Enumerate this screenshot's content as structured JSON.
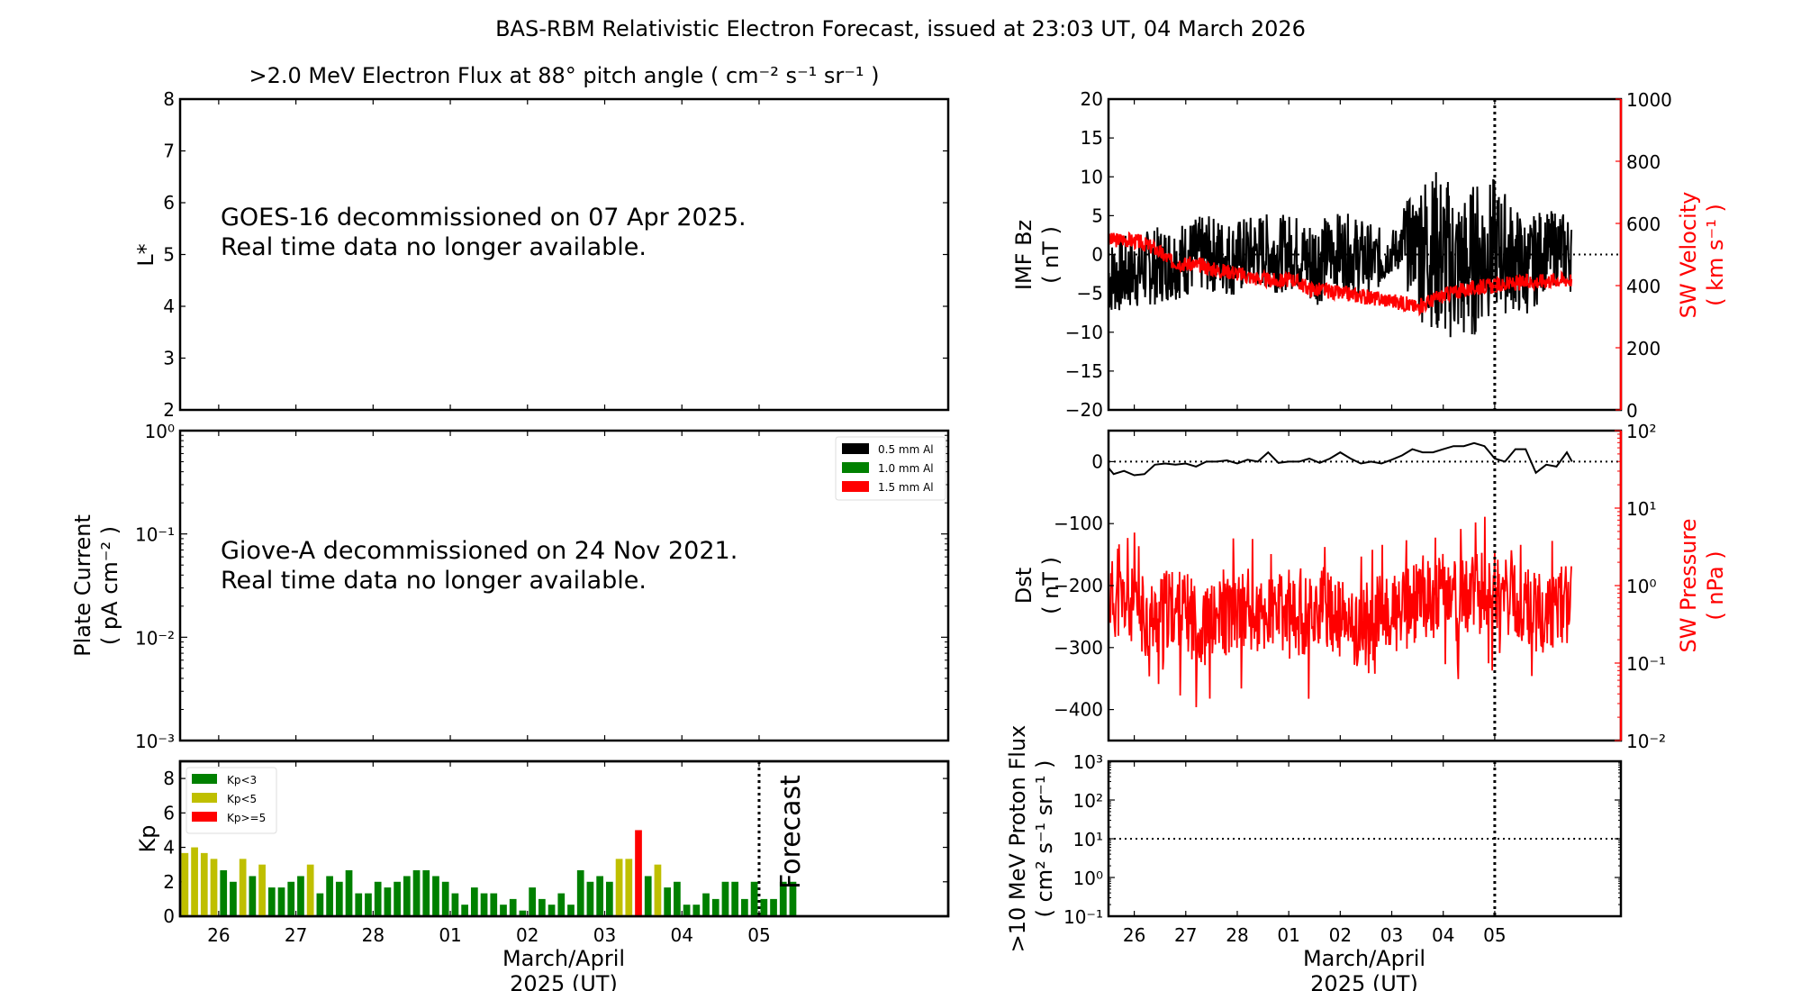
{
  "figure_title": "BAS-RBM Relativistic Electron Forecast, issued at 23:03 UT, 04 March 2026",
  "colors": {
    "green": "#008000",
    "yellow": "#bfbf00",
    "red": "#ff0000",
    "black": "#000000",
    "forecast_text": "#c8c8c8"
  },
  "chart_data": [
    {
      "id": "electron-flux",
      "type": "heatmap",
      "title": ">2.0 MeV Electron Flux at 88° pitch angle ( cm⁻² s⁻¹ sr⁻¹ )",
      "ylabel": "L*",
      "ylim": [
        2,
        8
      ],
      "yticks": [
        "2",
        "3",
        "4",
        "5",
        "6",
        "7",
        "8"
      ],
      "message": [
        "GOES-16 decommissioned on 07 Apr 2025.",
        "Real time data no longer available."
      ]
    },
    {
      "id": "plate-current",
      "type": "line",
      "ylabel": "Plate Current",
      "ylabel2": "( pA cm⁻² )",
      "yscale": "log",
      "ylim": [
        0.001,
        1
      ],
      "yticks": [
        "10⁻³",
        "10⁻²",
        "10⁻¹",
        "10⁰"
      ],
      "legend": [
        "0.5 mm Al",
        "1.0 mm Al",
        "1.5 mm Al"
      ],
      "legend_colors": [
        "#000000",
        "#008000",
        "#ff0000"
      ],
      "legend_position": "top-right",
      "message": [
        "Giove-A decommissioned on 24 Nov 2021.",
        "Real time data no longer available."
      ]
    },
    {
      "id": "kp",
      "type": "bar",
      "ylabel": "Kp",
      "ylim": [
        0,
        9
      ],
      "yticks": [
        "0",
        "2",
        "4",
        "6",
        "8"
      ],
      "xlabel": "March/April",
      "xlabel2": "2025 (UT)",
      "xticks": [
        "26",
        "27",
        "28",
        "01",
        "02",
        "03",
        "04",
        "05"
      ],
      "x_start_day": 25.5,
      "x_end_day": 35.45,
      "bin_hours": 3,
      "forecast_label": "Forecast",
      "forecast_start_index": 60,
      "legend": [
        "Kp<3",
        "Kp<5",
        "Kp>=5"
      ],
      "legend_position": "top-left",
      "values": [
        3.67,
        4,
        3.67,
        3.33,
        2.67,
        2,
        3.33,
        2.33,
        3,
        1.67,
        1.67,
        2,
        2.33,
        3,
        1.33,
        2.33,
        2,
        2.67,
        1.33,
        1.33,
        2,
        1.67,
        2,
        2.33,
        2.67,
        2.67,
        2.33,
        2,
        1.33,
        0.67,
        1.67,
        1.33,
        1.33,
        0.67,
        1,
        0.33,
        1.67,
        1,
        0.67,
        1.33,
        0.67,
        2.67,
        2,
        2.33,
        2,
        3.33,
        3.33,
        5,
        2.33,
        3,
        1.67,
        2,
        0.67,
        0.67,
        1.33,
        1,
        2,
        2,
        1,
        2,
        1,
        1,
        2,
        2
      ]
    },
    {
      "id": "imf-sw",
      "type": "line",
      "ylabel": "IMF Bz",
      "ylabel2": "( nT )",
      "ylim": [
        -20,
        20
      ],
      "yticks": [
        "−20",
        "−15",
        "−10",
        "−5",
        "0",
        "5",
        "10",
        "15",
        "20"
      ],
      "y2label": "SW Velocity",
      "y2label2": "( km s⁻¹ )",
      "y2lim": [
        0,
        1000
      ],
      "y2ticks": [
        "0",
        "200",
        "400",
        "600",
        "800",
        "1000"
      ],
      "series": [
        {
          "name": "IMF Bz",
          "color": "#000000",
          "x_days": [
            25.5,
            25.8,
            26.1,
            26.4,
            26.7,
            27.0,
            27.3,
            27.6,
            27.9,
            28.2,
            28.5,
            28.8,
            29.1,
            29.4,
            29.7,
            30.0,
            30.3,
            30.6,
            30.9,
            31.2,
            31.5,
            31.8,
            32.1,
            32.4,
            32.7,
            33.0,
            33.3,
            33.6,
            33.9,
            34.2,
            34.5
          ],
          "values": [
            -3,
            -2.5,
            -2,
            -1.5,
            -1,
            -0.5,
            0,
            0,
            -0.5,
            0,
            0.5,
            0,
            0.5,
            -1,
            0,
            0.5,
            0,
            -1,
            0,
            1,
            1.5,
            0.5,
            -1,
            -2,
            0,
            1,
            0,
            -2,
            0,
            1,
            0
          ],
          "envelope": [
            5,
            5,
            5,
            5,
            5,
            5,
            5,
            5,
            5,
            5,
            5,
            5,
            5,
            6,
            5,
            5,
            5,
            4,
            3,
            6,
            10,
            11,
            10,
            10,
            9,
            8,
            7,
            6,
            5,
            5,
            5
          ]
        },
        {
          "name": "SW Velocity",
          "color": "#ff0000",
          "x_days": [
            25.5,
            25.8,
            26.1,
            26.4,
            26.7,
            27.0,
            27.3,
            27.6,
            27.9,
            28.2,
            28.5,
            28.8,
            29.1,
            29.4,
            29.7,
            30.0,
            30.3,
            30.6,
            30.9,
            31.2,
            31.5,
            31.8,
            32.1,
            32.4,
            32.7,
            33.0,
            33.3,
            33.6,
            33.9,
            34.2,
            34.5
          ],
          "values": [
            545,
            550,
            540,
            520,
            480,
            470,
            465,
            450,
            445,
            430,
            420,
            415,
            420,
            390,
            385,
            375,
            370,
            360,
            355,
            345,
            330,
            355,
            375,
            385,
            395,
            400,
            405,
            410,
            415,
            420,
            420
          ]
        }
      ]
    },
    {
      "id": "dst-pressure",
      "type": "line",
      "ylabel": "Dst",
      "ylabel2": "( nT )",
      "ylim": [
        -450,
        50
      ],
      "yticks": [
        "−400",
        "−300",
        "−200",
        "−100",
        "0"
      ],
      "y2label": "SW Pressure",
      "y2label2": "( nPa )",
      "y2scale": "log",
      "y2lim": [
        0.01,
        100
      ],
      "y2ticks": [
        "10⁻²",
        "10⁻¹",
        "10⁰",
        "10¹",
        "10²"
      ],
      "series": [
        {
          "name": "Dst",
          "color": "#000000",
          "x_days": [
            25.5,
            25.6,
            25.8,
            26.0,
            26.2,
            26.4,
            26.6,
            26.8,
            27.0,
            27.2,
            27.4,
            27.6,
            27.8,
            28.0,
            28.2,
            28.4,
            28.6,
            28.8,
            29.0,
            29.2,
            29.4,
            29.6,
            29.8,
            30.0,
            30.2,
            30.4,
            30.6,
            30.8,
            31.0,
            31.2,
            31.4,
            31.6,
            31.8,
            32.0,
            32.2,
            32.4,
            32.6,
            32.8,
            33.0,
            33.2,
            33.4,
            33.6,
            33.8,
            34.0,
            34.2,
            34.4,
            34.5
          ],
          "values": [
            -10,
            -20,
            -15,
            -22,
            -20,
            -5,
            -3,
            -5,
            -3,
            -8,
            0,
            0,
            2,
            -3,
            3,
            0,
            15,
            -2,
            0,
            0,
            5,
            -2,
            5,
            15,
            5,
            -3,
            0,
            -3,
            3,
            10,
            20,
            15,
            15,
            20,
            25,
            25,
            30,
            25,
            5,
            0,
            20,
            20,
            -18,
            -5,
            -8,
            15,
            0
          ]
        },
        {
          "name": "SW Pressure",
          "color": "#ff0000",
          "x_days": [
            25.5,
            25.8,
            26.1,
            26.4,
            26.7,
            27.0,
            27.3,
            27.6,
            27.9,
            28.2,
            28.5,
            28.8,
            29.1,
            29.4,
            29.7,
            30.0,
            30.3,
            30.6,
            30.9,
            31.2,
            31.5,
            31.8,
            32.1,
            32.4,
            32.7,
            33.0,
            33.3,
            33.6,
            33.9,
            34.2,
            34.5
          ],
          "values": [
            0.8,
            0.7,
            0.5,
            0.4,
            0.6,
            0.5,
            0.3,
            0.4,
            0.5,
            0.5,
            0.4,
            0.5,
            0.4,
            0.5,
            0.6,
            0.4,
            0.3,
            0.4,
            0.5,
            0.5,
            0.7,
            0.8,
            0.9,
            0.8,
            0.9,
            1.0,
            0.7,
            0.6,
            0.5,
            0.6,
            0.7
          ]
        }
      ]
    },
    {
      "id": "proton-flux",
      "type": "line",
      "ylabel": ">10 MeV Proton Flux",
      "ylabel2": "( cm² s⁻¹ sr⁻¹ )",
      "yscale": "log",
      "ylim": [
        0.1,
        1000
      ],
      "yticks": [
        "10⁻¹",
        "10⁰",
        "10¹",
        "10²",
        "10³"
      ],
      "threshold": 10,
      "xlabel": "March/April",
      "xlabel2": "2025 (UT)",
      "xticks": [
        "26",
        "27",
        "28",
        "01",
        "02",
        "03",
        "04",
        "05"
      ]
    }
  ]
}
